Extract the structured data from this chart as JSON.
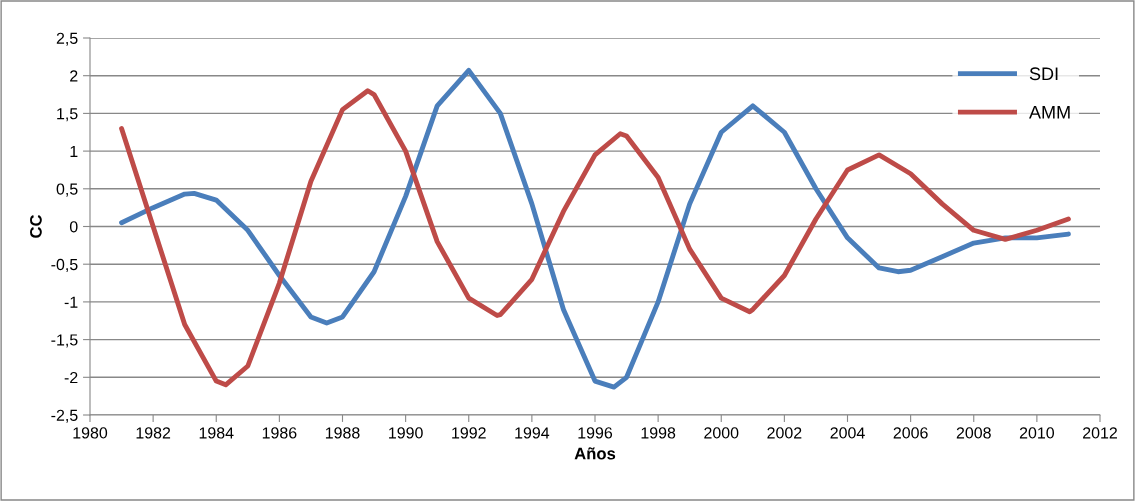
{
  "chart_data": {
    "type": "line",
    "xlabel": "Años",
    "ylabel": "CC",
    "series": [
      {
        "name": "SDI",
        "color": "#4a7ebb",
        "x": [
          1981,
          1982,
          1983,
          1983.3,
          1984,
          1985,
          1986,
          1987,
          1987.5,
          1988,
          1989,
          1990,
          1991,
          1992,
          1993,
          1994,
          1995,
          1996,
          1996.6,
          1997,
          1998,
          1999,
          2000,
          2001,
          2002,
          2003,
          2004,
          2005,
          2005.6,
          2006,
          2007,
          2008,
          2009,
          2010,
          2011
        ],
        "values": [
          0.05,
          0.25,
          0.43,
          0.44,
          0.35,
          -0.05,
          -0.65,
          -1.2,
          -1.28,
          -1.2,
          -0.6,
          0.4,
          1.6,
          2.07,
          1.5,
          0.3,
          -1.1,
          -2.05,
          -2.13,
          -2.0,
          -1.0,
          0.3,
          1.25,
          1.6,
          1.25,
          0.5,
          -0.15,
          -0.55,
          -0.6,
          -0.58,
          -0.4,
          -0.22,
          -0.15,
          -0.15,
          -0.1
        ]
      },
      {
        "name": "AMM",
        "color": "#be4b48",
        "x": [
          1981,
          1982,
          1983,
          1984,
          1984.3,
          1985,
          1986,
          1987,
          1988,
          1988.8,
          1989,
          1990,
          1991,
          1992,
          1992.9,
          1993,
          1994,
          1995,
          1996,
          1996.8,
          1997,
          1998,
          1999,
          2000,
          2000.9,
          2001,
          2002,
          2003,
          2004,
          2005,
          2006,
          2007,
          2008,
          2009,
          2010,
          2011
        ],
        "values": [
          1.3,
          0.0,
          -1.3,
          -2.05,
          -2.1,
          -1.85,
          -0.75,
          0.6,
          1.55,
          1.8,
          1.75,
          1.0,
          -0.2,
          -0.95,
          -1.18,
          -1.17,
          -0.7,
          0.2,
          0.95,
          1.23,
          1.2,
          0.65,
          -0.3,
          -0.95,
          -1.13,
          -1.1,
          -0.65,
          0.1,
          0.75,
          0.95,
          0.7,
          0.3,
          -0.05,
          -0.17,
          -0.05,
          0.1
        ]
      }
    ],
    "xlim": [
      1980,
      2012
    ],
    "xticks": [
      1980,
      1982,
      1984,
      1986,
      1988,
      1990,
      1992,
      1994,
      1996,
      1998,
      2000,
      2002,
      2004,
      2006,
      2008,
      2010,
      2012
    ],
    "ylim": [
      -2.5,
      2.5
    ],
    "yticks": [
      {
        "value": -2.5,
        "label": "-2,5"
      },
      -2,
      {
        "value": -1.5,
        "label": "-1,5"
      },
      -1,
      {
        "value": -0.5,
        "label": "-0,5"
      },
      0,
      {
        "value": 0.5,
        "label": "0,5"
      },
      1,
      {
        "value": 1.5,
        "label": "1,5"
      },
      2,
      {
        "value": 2.5,
        "label": "2,5"
      }
    ],
    "grid": "y",
    "legend": "top right",
    "marker": "none",
    "line_style": "solid"
  }
}
